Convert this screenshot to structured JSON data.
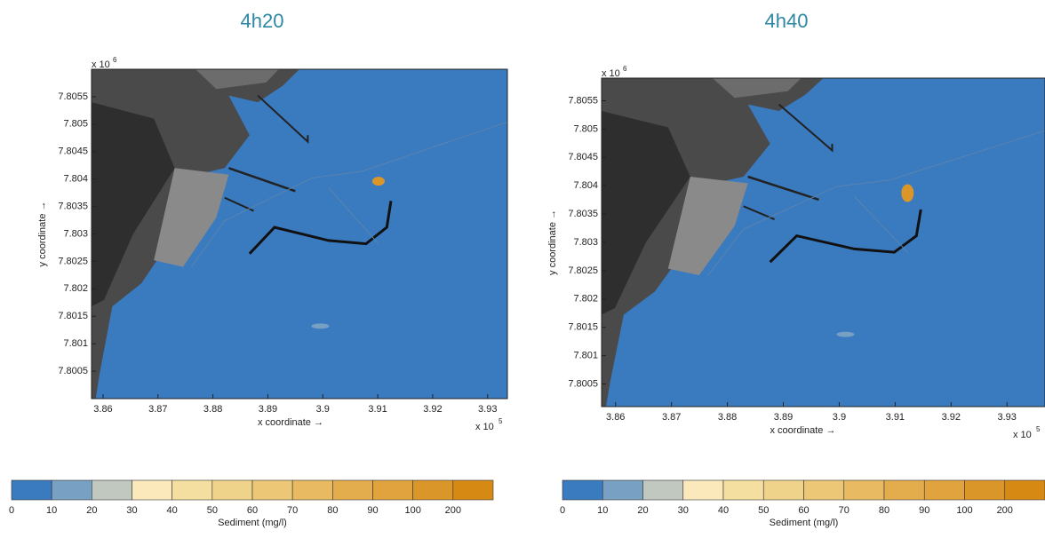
{
  "chart_data": [
    {
      "type": "map",
      "title": "4h20",
      "x_label": "x coordinate →",
      "y_label": "y coordinate →",
      "x_multiplier": "x 10",
      "x_exponent": "5",
      "y_multiplier": "x 10",
      "y_exponent": "6",
      "xlim": [
        3.8579,
        3.9336
      ],
      "ylim": [
        7.8,
        7.806
      ],
      "xticks": [
        3.86,
        3.87,
        3.88,
        3.89,
        3.9,
        3.91,
        3.92,
        3.93
      ],
      "yticks": [
        7.8005,
        7.801,
        7.8015,
        7.802,
        7.8025,
        7.803,
        7.8035,
        7.804,
        7.8045,
        7.805,
        7.8055
      ],
      "colorbar": {
        "label": "Sediment (mg/l)",
        "levels": [
          0,
          10,
          20,
          30,
          40,
          50,
          60,
          70,
          80,
          90,
          100,
          200
        ],
        "colors": [
          "#3a7abf",
          "#77a0c2",
          "#c0c8c0",
          "#fbe9bb",
          "#f5dfa0",
          "#f0d38a",
          "#ecc775",
          "#e8bb62",
          "#e3ad4e",
          "#e0a33e",
          "#db962a",
          "#d68a13"
        ]
      }
    },
    {
      "type": "map",
      "title": "4h40",
      "x_label": "x coordinate →",
      "y_label": "y coordinate →",
      "x_multiplier": "x 10",
      "x_exponent": "5",
      "y_multiplier": "x 10",
      "y_exponent": "6",
      "xlim": [
        3.8575,
        3.9368
      ],
      "ylim": [
        7.8001,
        7.8059
      ],
      "xticks": [
        3.86,
        3.87,
        3.88,
        3.89,
        3.9,
        3.91,
        3.92,
        3.93
      ],
      "yticks": [
        7.8005,
        7.801,
        7.8015,
        7.802,
        7.8025,
        7.803,
        7.8035,
        7.804,
        7.8045,
        7.805,
        7.8055
      ],
      "colorbar": {
        "label": "Sediment (mg/l)",
        "levels": [
          0,
          10,
          20,
          30,
          40,
          50,
          60,
          70,
          80,
          90,
          100,
          200
        ],
        "colors": [
          "#3a7abf",
          "#77a0c2",
          "#c0c8c0",
          "#fbe9bb",
          "#f5dfa0",
          "#f0d38a",
          "#ecc775",
          "#e8bb62",
          "#e3ad4e",
          "#e0a33e",
          "#db962a",
          "#d68a13"
        ]
      }
    }
  ]
}
